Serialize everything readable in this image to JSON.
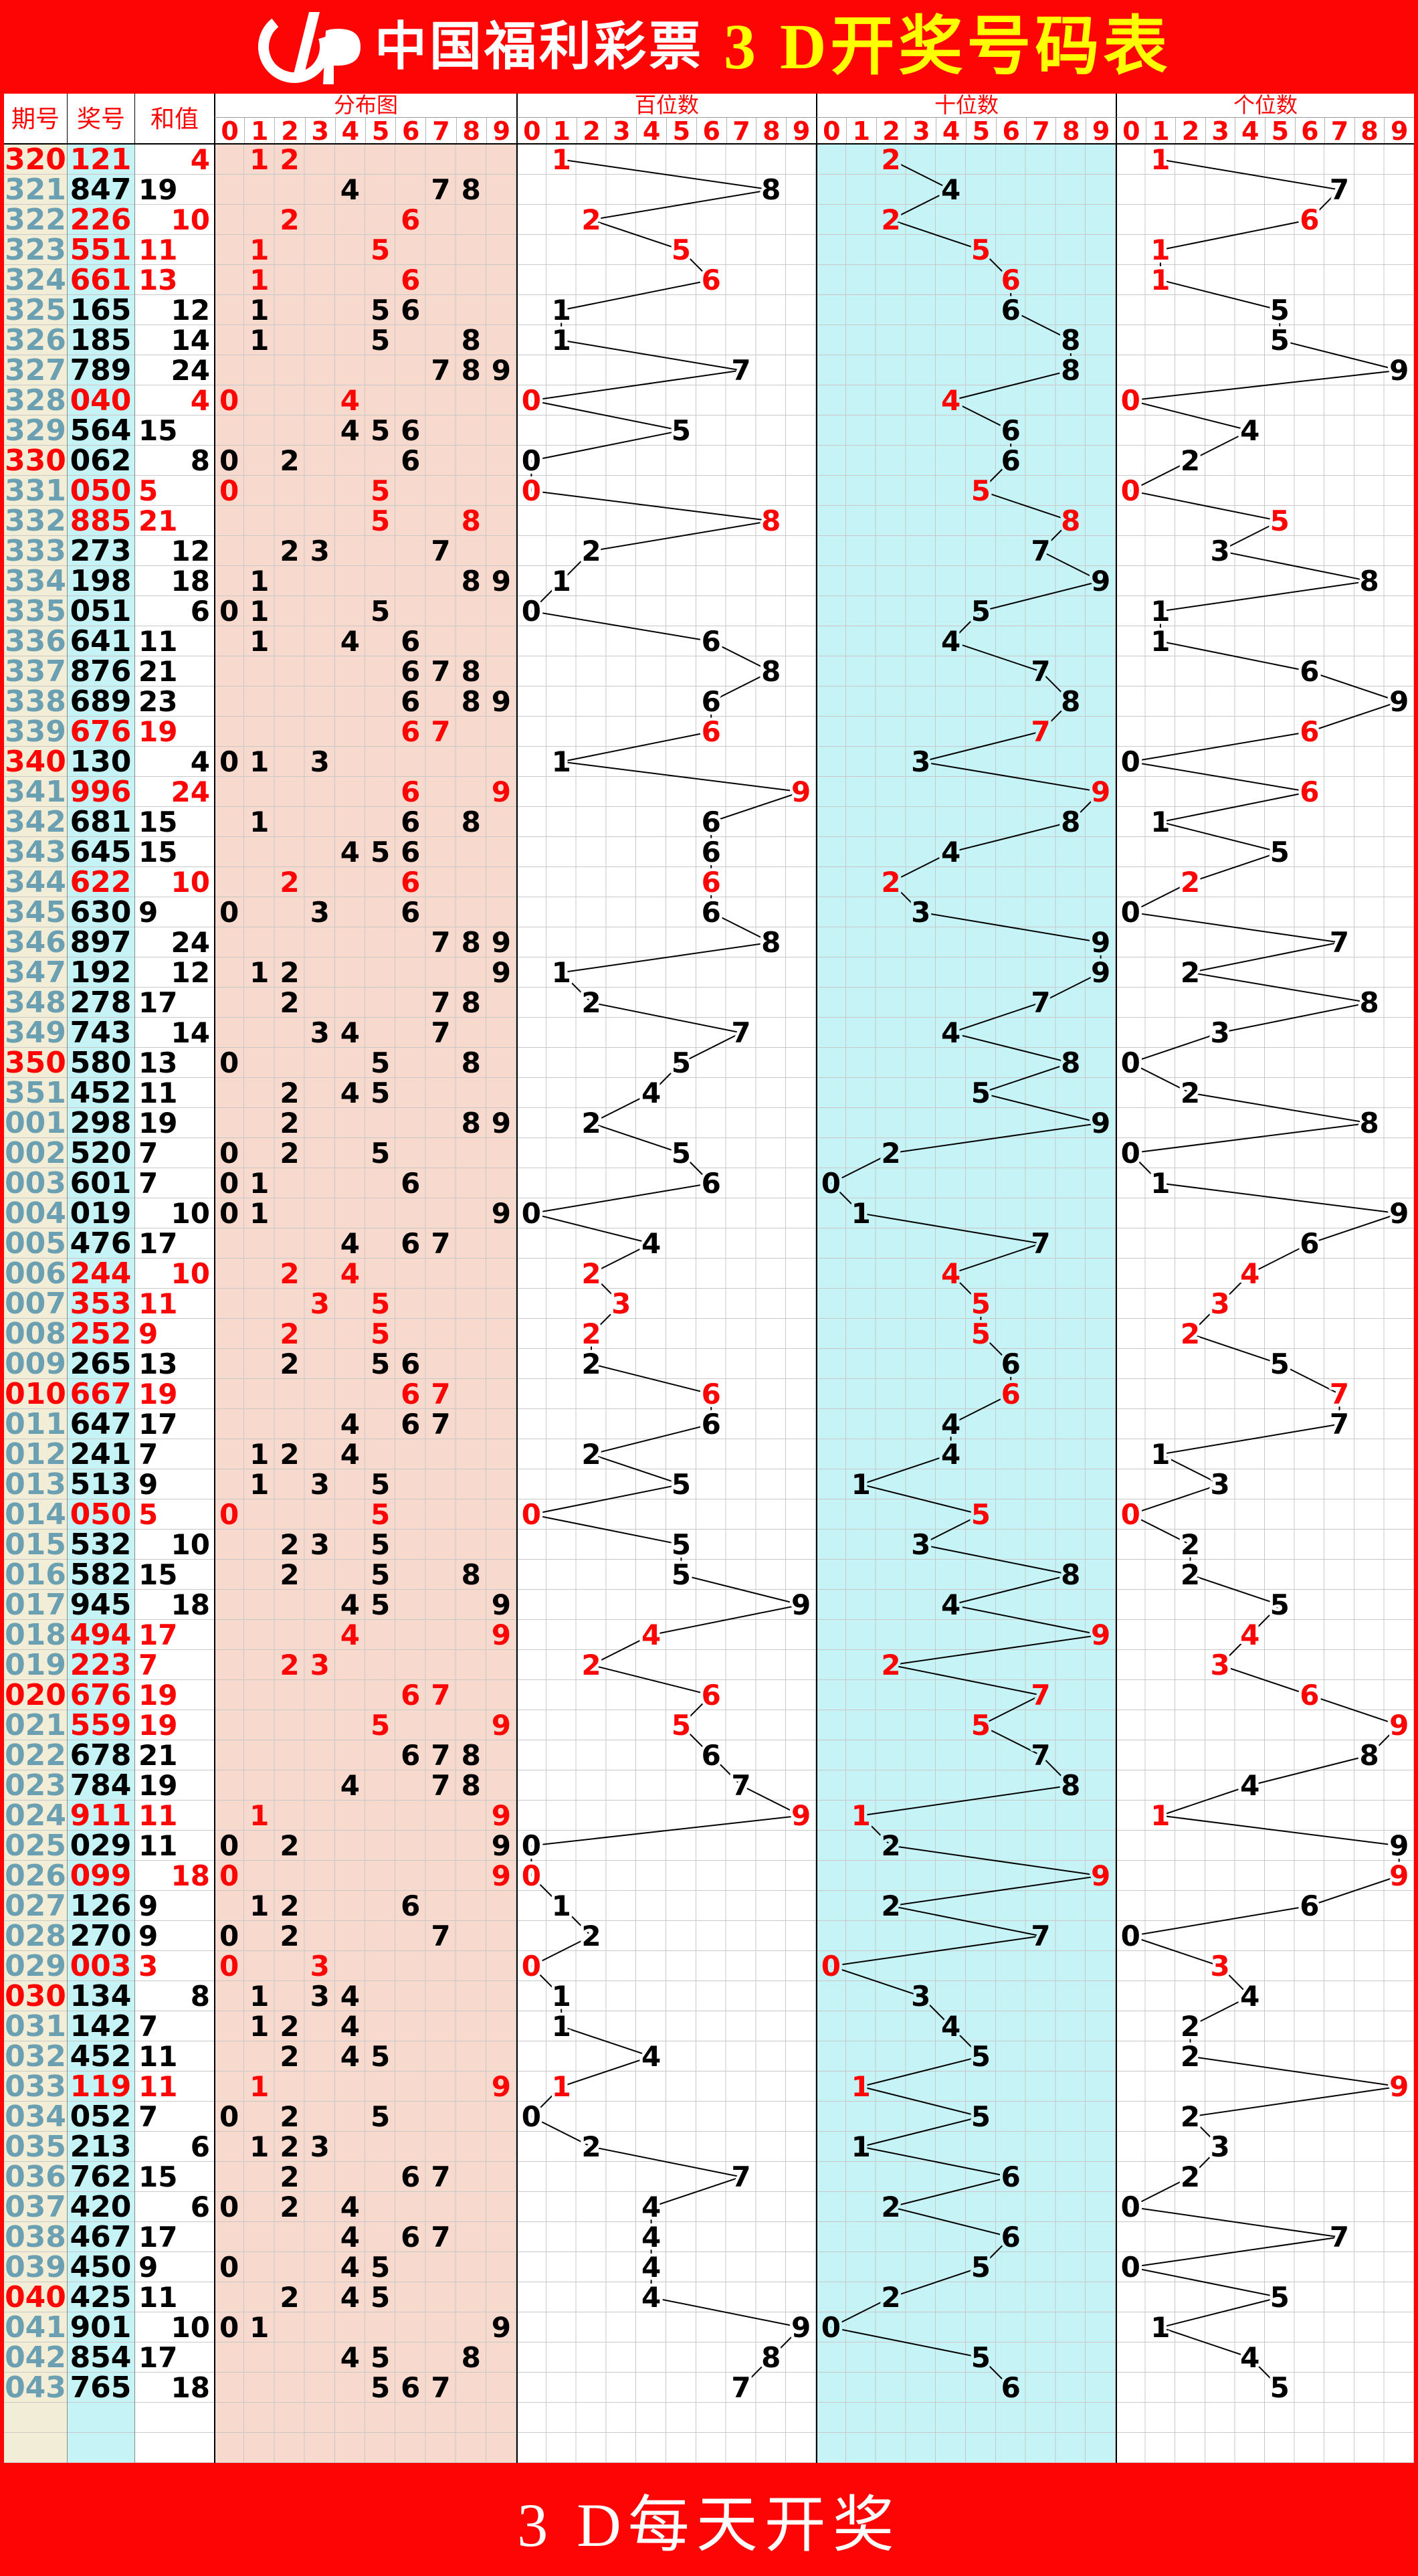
{
  "banner": {
    "logo": "cfp",
    "brand": "中国福利彩票",
    "title": "3 D开奖号码表"
  },
  "footer": {
    "text": "3 D每天开奖"
  },
  "header": {
    "left": [
      "期号",
      "奖号",
      "和值"
    ],
    "sections": [
      "分布图",
      "百位数",
      "十位数",
      "个位数"
    ],
    "digits": [
      "0",
      "1",
      "2",
      "3",
      "4",
      "5",
      "6",
      "7",
      "8",
      "9"
    ]
  },
  "colors": {
    "banner_red": "#fe0505",
    "title_yellow": "#ffff00",
    "white": "#ffffff",
    "accent_red": "#fe0505",
    "period_teal": "#6b9fb2",
    "black": "#000000",
    "period_bg": "#f2edd6",
    "number_bg": "#c6f3f5",
    "dist_bg": "#f8d9ce",
    "tens_bg": "#c6f3f5",
    "grid_line": "#c8c8c8"
  },
  "chart_data": {
    "type": "table",
    "title": "3 D开奖号码表",
    "columns": [
      "期号",
      "奖号",
      "和值",
      "分布图 0-9",
      "百位数 0-9",
      "十位数 0-9",
      "个位数 0-9"
    ],
    "row_format": [
      "period",
      "number",
      "sum",
      "is_pair_red",
      "is_period_red"
    ],
    "notes": "分布图 shows unique digits of 奖号 in columns 0-9; 百位/十位/个位 plot the hundreds/tens/units digit as a connected zigzag line; odd sums left-aligned, even sums right-aligned; numbers with repeated digits shown in red; periods ending in 0 shown in red",
    "rows": [
      [
        "320",
        "121",
        4,
        1,
        1
      ],
      [
        "321",
        "847",
        19,
        0,
        0
      ],
      [
        "322",
        "226",
        10,
        1,
        0
      ],
      [
        "323",
        "551",
        11,
        1,
        0
      ],
      [
        "324",
        "661",
        13,
        1,
        0
      ],
      [
        "325",
        "165",
        12,
        0,
        0
      ],
      [
        "326",
        "185",
        14,
        0,
        0
      ],
      [
        "327",
        "789",
        24,
        0,
        0
      ],
      [
        "328",
        "040",
        4,
        1,
        0
      ],
      [
        "329",
        "564",
        15,
        0,
        0
      ],
      [
        "330",
        "062",
        8,
        0,
        1
      ],
      [
        "331",
        "050",
        5,
        1,
        0
      ],
      [
        "332",
        "885",
        21,
        1,
        0
      ],
      [
        "333",
        "273",
        12,
        0,
        0
      ],
      [
        "334",
        "198",
        18,
        0,
        0
      ],
      [
        "335",
        "051",
        6,
        0,
        0
      ],
      [
        "336",
        "641",
        11,
        0,
        0
      ],
      [
        "337",
        "876",
        21,
        0,
        0
      ],
      [
        "338",
        "689",
        23,
        0,
        0
      ],
      [
        "339",
        "676",
        19,
        1,
        0
      ],
      [
        "340",
        "130",
        4,
        0,
        1
      ],
      [
        "341",
        "996",
        24,
        1,
        0
      ],
      [
        "342",
        "681",
        15,
        0,
        0
      ],
      [
        "343",
        "645",
        15,
        0,
        0
      ],
      [
        "344",
        "622",
        10,
        1,
        0
      ],
      [
        "345",
        "630",
        9,
        0,
        0
      ],
      [
        "346",
        "897",
        24,
        0,
        0
      ],
      [
        "347",
        "192",
        12,
        0,
        0
      ],
      [
        "348",
        "278",
        17,
        0,
        0
      ],
      [
        "349",
        "743",
        14,
        0,
        0
      ],
      [
        "350",
        "580",
        13,
        0,
        1
      ],
      [
        "351",
        "452",
        11,
        0,
        0
      ],
      [
        "001",
        "298",
        19,
        0,
        0
      ],
      [
        "002",
        "520",
        7,
        0,
        0
      ],
      [
        "003",
        "601",
        7,
        0,
        0
      ],
      [
        "004",
        "019",
        10,
        0,
        0
      ],
      [
        "005",
        "476",
        17,
        0,
        0
      ],
      [
        "006",
        "244",
        10,
        1,
        0
      ],
      [
        "007",
        "353",
        11,
        1,
        0
      ],
      [
        "008",
        "252",
        9,
        1,
        0
      ],
      [
        "009",
        "265",
        13,
        0,
        0
      ],
      [
        "010",
        "667",
        19,
        1,
        1
      ],
      [
        "011",
        "647",
        17,
        0,
        0
      ],
      [
        "012",
        "241",
        7,
        0,
        0
      ],
      [
        "013",
        "513",
        9,
        0,
        0
      ],
      [
        "014",
        "050",
        5,
        1,
        0
      ],
      [
        "015",
        "532",
        10,
        0,
        0
      ],
      [
        "016",
        "582",
        15,
        0,
        0
      ],
      [
        "017",
        "945",
        18,
        0,
        0
      ],
      [
        "018",
        "494",
        17,
        1,
        0
      ],
      [
        "019",
        "223",
        7,
        1,
        0
      ],
      [
        "020",
        "676",
        19,
        1,
        1
      ],
      [
        "021",
        "559",
        19,
        1,
        0
      ],
      [
        "022",
        "678",
        21,
        0,
        0
      ],
      [
        "023",
        "784",
        19,
        0,
        0
      ],
      [
        "024",
        "911",
        11,
        1,
        0
      ],
      [
        "025",
        "029",
        11,
        0,
        0
      ],
      [
        "026",
        "099",
        18,
        1,
        0
      ],
      [
        "027",
        "126",
        9,
        0,
        0
      ],
      [
        "028",
        "270",
        9,
        0,
        0
      ],
      [
        "029",
        "003",
        3,
        1,
        0
      ],
      [
        "030",
        "134",
        8,
        0,
        1
      ],
      [
        "031",
        "142",
        7,
        0,
        0
      ],
      [
        "032",
        "452",
        11,
        0,
        0
      ],
      [
        "033",
        "119",
        11,
        1,
        0
      ],
      [
        "034",
        "052",
        7,
        0,
        0
      ],
      [
        "035",
        "213",
        6,
        0,
        0
      ],
      [
        "036",
        "762",
        15,
        0,
        0
      ],
      [
        "037",
        "420",
        6,
        0,
        0
      ],
      [
        "038",
        "467",
        17,
        0,
        0
      ],
      [
        "039",
        "450",
        9,
        0,
        0
      ],
      [
        "040",
        "425",
        11,
        0,
        1
      ],
      [
        "041",
        "901",
        10,
        0,
        0
      ],
      [
        "042",
        "854",
        17,
        0,
        0
      ],
      [
        "043",
        "765",
        18,
        0,
        0
      ]
    ]
  }
}
